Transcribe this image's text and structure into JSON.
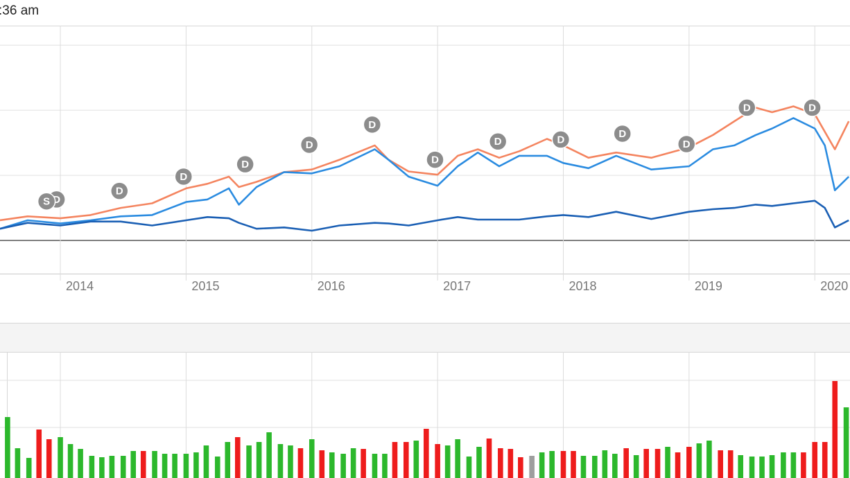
{
  "timestamp": ":36 am",
  "chart_data": [
    {
      "type": "line",
      "x": [
        2013.52,
        2013.74,
        2014.0,
        2014.24,
        2014.48,
        2014.73,
        2015.0,
        2015.17,
        2015.34,
        2015.42,
        2015.56,
        2015.78,
        2016.0,
        2016.22,
        2016.5,
        2016.61,
        2016.77,
        2017.0,
        2017.16,
        2017.32,
        2017.49,
        2017.65,
        2017.87,
        2018.0,
        2018.2,
        2018.42,
        2018.7,
        2019.0,
        2019.19,
        2019.36,
        2019.53,
        2019.66,
        2019.83,
        2020.0,
        2020.08,
        2020.16,
        2020.27
      ],
      "xlim": [
        2013.52,
        2020.28
      ],
      "xticks": [
        2014,
        2015,
        2016,
        2017,
        2018,
        2019,
        2020
      ],
      "ylim": [
        -0.51,
        3.3
      ],
      "ygrid": [
        0,
        1,
        2,
        3
      ],
      "series": [
        {
          "color": "#f4845f",
          "values": [
            0.31,
            0.37,
            0.34,
            0.39,
            0.5,
            0.57,
            0.8,
            0.87,
            0.98,
            0.82,
            0.9,
            1.05,
            1.09,
            1.24,
            1.46,
            1.24,
            1.06,
            1.01,
            1.3,
            1.4,
            1.27,
            1.37,
            1.56,
            1.46,
            1.27,
            1.35,
            1.27,
            1.43,
            1.62,
            1.83,
            2.04,
            1.97,
            2.06,
            1.94,
            1.67,
            1.4,
            1.83
          ]
        },
        {
          "color": "#2a8be0",
          "values": [
            0.18,
            0.31,
            0.26,
            0.31,
            0.37,
            0.39,
            0.59,
            0.63,
            0.8,
            0.55,
            0.82,
            1.05,
            1.03,
            1.14,
            1.4,
            1.24,
            0.98,
            0.84,
            1.14,
            1.35,
            1.14,
            1.3,
            1.3,
            1.19,
            1.11,
            1.3,
            1.09,
            1.14,
            1.4,
            1.46,
            1.62,
            1.72,
            1.88,
            1.72,
            1.46,
            0.77,
            0.98
          ]
        },
        {
          "color": "#1a5fb4",
          "values": [
            0.18,
            0.27,
            0.23,
            0.29,
            0.29,
            0.23,
            0.31,
            0.36,
            0.34,
            0.27,
            0.18,
            0.2,
            0.15,
            0.23,
            0.27,
            0.26,
            0.23,
            0.31,
            0.36,
            0.32,
            0.32,
            0.32,
            0.37,
            0.39,
            0.36,
            0.44,
            0.33,
            0.44,
            0.48,
            0.5,
            0.55,
            0.53,
            0.57,
            0.61,
            0.5,
            0.2,
            0.31
          ]
        }
      ],
      "event_color": "#8c8c8c",
      "events": [
        {
          "x": 2013.97,
          "y": 0.63,
          "label": "D"
        },
        {
          "x": 2013.89,
          "y": 0.6,
          "label": "S"
        },
        {
          "x": 2014.47,
          "y": 0.76,
          "label": "D"
        },
        {
          "x": 2014.98,
          "y": 0.98,
          "label": "D"
        },
        {
          "x": 2015.47,
          "y": 1.17,
          "label": "D"
        },
        {
          "x": 2015.98,
          "y": 1.47,
          "label": "D"
        },
        {
          "x": 2016.48,
          "y": 1.78,
          "label": "D"
        },
        {
          "x": 2016.98,
          "y": 1.24,
          "label": "D"
        },
        {
          "x": 2017.48,
          "y": 1.52,
          "label": "D"
        },
        {
          "x": 2017.98,
          "y": 1.55,
          "label": "D"
        },
        {
          "x": 2018.47,
          "y": 1.64,
          "label": "D"
        },
        {
          "x": 2018.98,
          "y": 1.48,
          "label": "D"
        },
        {
          "x": 2019.46,
          "y": 2.04,
          "label": "D"
        },
        {
          "x": 2019.98,
          "y": 2.04,
          "label": "D"
        }
      ]
    },
    {
      "type": "bar",
      "x": [
        2013.58,
        2013.66,
        2013.75,
        2013.83,
        2013.91,
        2014.0,
        2014.08,
        2014.16,
        2014.25,
        2014.33,
        2014.41,
        2014.5,
        2014.58,
        2014.66,
        2014.75,
        2014.83,
        2014.91,
        2015.0,
        2015.08,
        2015.16,
        2015.25,
        2015.33,
        2015.41,
        2015.5,
        2015.58,
        2015.66,
        2015.75,
        2015.83,
        2015.91,
        2016.0,
        2016.08,
        2016.16,
        2016.25,
        2016.33,
        2016.41,
        2016.5,
        2016.58,
        2016.66,
        2016.75,
        2016.83,
        2016.91,
        2017.0,
        2017.08,
        2017.16,
        2017.25,
        2017.33,
        2017.41,
        2017.5,
        2017.58,
        2017.66,
        2017.75,
        2017.83,
        2017.91,
        2018.0,
        2018.08,
        2018.16,
        2018.25,
        2018.33,
        2018.41,
        2018.5,
        2018.58,
        2018.66,
        2018.75,
        2018.83,
        2018.91,
        2019.0,
        2019.08,
        2019.16,
        2019.25,
        2019.33,
        2019.41,
        2019.5,
        2019.58,
        2019.66,
        2019.75,
        2019.83,
        2019.91,
        2020.0,
        2020.08,
        2020.16,
        2020.25
      ],
      "values": [
        88,
        43,
        29,
        70,
        56,
        59,
        49,
        42,
        32,
        30,
        32,
        32,
        39,
        39,
        39,
        35,
        35,
        35,
        37,
        47,
        31,
        52,
        59,
        47,
        52,
        66,
        49,
        47,
        43,
        56,
        40,
        37,
        35,
        43,
        42,
        35,
        35,
        52,
        52,
        54,
        71,
        49,
        47,
        56,
        31,
        45,
        57,
        43,
        42,
        30,
        32,
        37,
        39,
        39,
        39,
        32,
        32,
        40,
        35,
        43,
        33,
        42,
        42,
        45,
        37,
        45,
        50,
        54,
        40,
        40,
        33,
        31,
        31,
        33,
        37,
        37,
        37,
        52,
        52,
        140,
        102
      ],
      "colors": [
        "#2cb82c",
        "#2cb82c",
        "#2cb82c",
        "#ee1c1c",
        "#ee1c1c",
        "#2cb82c",
        "#2cb82c",
        "#2cb82c",
        "#2cb82c",
        "#2cb82c",
        "#2cb82c",
        "#2cb82c",
        "#2cb82c",
        "#ee1c1c",
        "#2cb82c",
        "#2cb82c",
        "#2cb82c",
        "#2cb82c",
        "#2cb82c",
        "#2cb82c",
        "#2cb82c",
        "#2cb82c",
        "#ee1c1c",
        "#2cb82c",
        "#2cb82c",
        "#2cb82c",
        "#2cb82c",
        "#2cb82c",
        "#ee1c1c",
        "#2cb82c",
        "#ee1c1c",
        "#2cb82c",
        "#2cb82c",
        "#2cb82c",
        "#ee1c1c",
        "#2cb82c",
        "#2cb82c",
        "#ee1c1c",
        "#ee1c1c",
        "#2cb82c",
        "#ee1c1c",
        "#ee1c1c",
        "#2cb82c",
        "#2cb82c",
        "#2cb82c",
        "#2cb82c",
        "#ee1c1c",
        "#ee1c1c",
        "#ee1c1c",
        "#ee1c1c",
        "#9e9e9e",
        "#2cb82c",
        "#2cb82c",
        "#ee1c1c",
        "#ee1c1c",
        "#2cb82c",
        "#2cb82c",
        "#2cb82c",
        "#2cb82c",
        "#ee1c1c",
        "#2cb82c",
        "#ee1c1c",
        "#ee1c1c",
        "#2cb82c",
        "#ee1c1c",
        "#ee1c1c",
        "#2cb82c",
        "#2cb82c",
        "#ee1c1c",
        "#ee1c1c",
        "#2cb82c",
        "#2cb82c",
        "#2cb82c",
        "#2cb82c",
        "#2cb82c",
        "#2cb82c",
        "#ee1c1c",
        "#ee1c1c",
        "#ee1c1c",
        "#ee1c1c",
        "#2cb82c"
      ],
      "xlim": [
        2013.52,
        2020.28
      ],
      "ylim": [
        0,
        182
      ],
      "ygrid": [
        73,
        141
      ]
    }
  ]
}
